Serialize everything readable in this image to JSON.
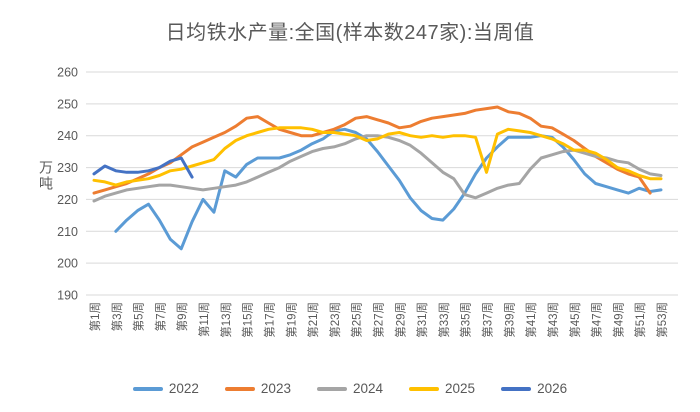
{
  "chart": {
    "title": "日均铁水产量:全国(样本数247家):当周值",
    "y_axis": {
      "unit": "万吨",
      "ticks": [
        260,
        250,
        240,
        230,
        220,
        210,
        200,
        190
      ]
    },
    "x_axis": {
      "tick_labels": [
        "第1周",
        "第3周",
        "第5周",
        "第7周",
        "第9周",
        "第11周",
        "第13周",
        "第15周",
        "第17周",
        "第19周",
        "第21周",
        "第23周",
        "第25周",
        "第27周",
        "第29周",
        "第31周",
        "第33周",
        "第35周",
        "第37周",
        "第39周",
        "第41周",
        "第43周",
        "第45周",
        "第47周",
        "第49周",
        "第51周",
        "第53周"
      ]
    }
  },
  "chart_data": {
    "type": "line",
    "title": "日均铁水产量:全国(样本数247家):当周值",
    "xlabel": "",
    "ylabel": "万吨",
    "ylim": [
      190,
      260
    ],
    "x_unit": "week_of_year",
    "x_range": [
      1,
      53
    ],
    "grid": "horizontal",
    "legend_position": "bottom",
    "colors": {
      "grid": "#d9d9d9",
      "axis_text": "#595959",
      "title_text": "#595959"
    },
    "series": [
      {
        "name": "2022",
        "color": "#5B9BD5",
        "values": [
          null,
          null,
          210,
          213.5,
          216.5,
          218.5,
          213.5,
          207.5,
          204.5,
          213,
          220,
          216,
          229,
          227,
          231,
          233,
          233,
          233,
          234,
          235.5,
          237.5,
          239,
          241.5,
          242,
          241,
          239,
          235,
          230.5,
          226,
          220.5,
          216.5,
          214,
          213.5,
          217,
          222,
          228,
          233,
          236.5,
          239.5,
          239.5,
          239.5,
          240,
          239.5,
          236.5,
          232.5,
          228,
          225,
          224,
          223,
          222,
          223.5,
          222.5,
          223
        ]
      },
      {
        "name": "2023",
        "color": "#ED7D31",
        "values": [
          222,
          223,
          224,
          225,
          226.5,
          228,
          230,
          231.5,
          234,
          236.5,
          238,
          239.5,
          241,
          243,
          245.5,
          246,
          244,
          242,
          241,
          240,
          240,
          241,
          242,
          243.5,
          245.5,
          246,
          245,
          244,
          242.5,
          243,
          244.5,
          245.5,
          246,
          246.5,
          247,
          248,
          248.5,
          249,
          247.5,
          247,
          245.5,
          243,
          242.5,
          240.5,
          238.5,
          236,
          233.5,
          231.5,
          229.5,
          228,
          227,
          222
        ]
      },
      {
        "name": "2024",
        "color": "#A5A5A5",
        "values": [
          219.5,
          221,
          222,
          223,
          223.5,
          224,
          224.5,
          224.5,
          224,
          223.5,
          223,
          223.5,
          224,
          224.5,
          225.5,
          227,
          228.5,
          230,
          232,
          233.5,
          235,
          236,
          236.5,
          237.5,
          239,
          240,
          240,
          239.5,
          238.5,
          237,
          234.5,
          231.5,
          228.5,
          226.5,
          221.5,
          220.5,
          222,
          223.5,
          224.5,
          225,
          229.5,
          233,
          234,
          235,
          235.5,
          234.5,
          233.5,
          233,
          232,
          231.5,
          229.5,
          228,
          227.5
        ]
      },
      {
        "name": "2025",
        "color": "#FFC000",
        "values": [
          226,
          225.5,
          224.5,
          225.5,
          226,
          226.5,
          227.5,
          229,
          229.5,
          230.5,
          231.5,
          232.5,
          236,
          238.5,
          240,
          241,
          242,
          242.5,
          242.5,
          242.5,
          242,
          241,
          241,
          240.5,
          240,
          238.5,
          239,
          240.5,
          241,
          240,
          239.5,
          240,
          239.5,
          240,
          240,
          239.5,
          228.5,
          240.5,
          242,
          241.5,
          241,
          240,
          239,
          237.5,
          235.5,
          235.5,
          234.5,
          232.5,
          230,
          229,
          227.5,
          226.5,
          226.5
        ]
      },
      {
        "name": "2026",
        "color": "#4472C4",
        "values": [
          228,
          230.5,
          229,
          228.5,
          228.5,
          229,
          230,
          232,
          233,
          227
        ]
      }
    ]
  }
}
